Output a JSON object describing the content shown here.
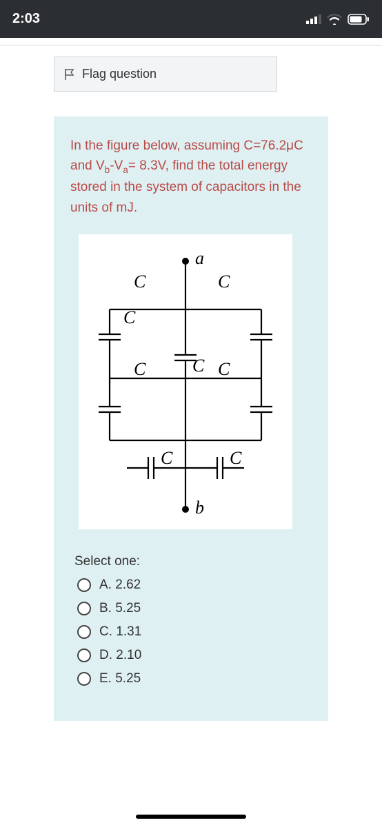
{
  "status": {
    "time": "2:03"
  },
  "flag": {
    "label": "Flag question"
  },
  "question": {
    "prompt_parts": {
      "p1": "In the figure below, assuming C=76.2μC and V",
      "sub1": "b",
      "p2": "-V",
      "sub2": "a",
      "p3": "= 8.3V, find the total energy stored in the system of capacitors in the units of mJ."
    },
    "select_label": "Select one:",
    "options": [
      {
        "label": "A. 2.62"
      },
      {
        "label": "B. 5.25"
      },
      {
        "label": "C. 1.31"
      },
      {
        "label": "D. 2.10"
      },
      {
        "label": "E. 5.25"
      }
    ]
  },
  "diagram": {
    "node_a": "a",
    "node_b": "b",
    "cap_label": "C",
    "label_font_family": "Times New Roman, serif",
    "label_font_style": "italic",
    "label_font_size": 26,
    "stroke_color": "#000000",
    "stroke_width": 2.2,
    "plate_gap": 8,
    "plate_half_len": 16,
    "background": "#ffffff",
    "colors": {
      "card_bg": "#dff0f2",
      "prompt_text": "#b94a48",
      "body_text": "#333333",
      "flag_bg": "#f2f4f5",
      "flag_border": "#cfd6db",
      "status_bg": "#2b2f33"
    }
  }
}
